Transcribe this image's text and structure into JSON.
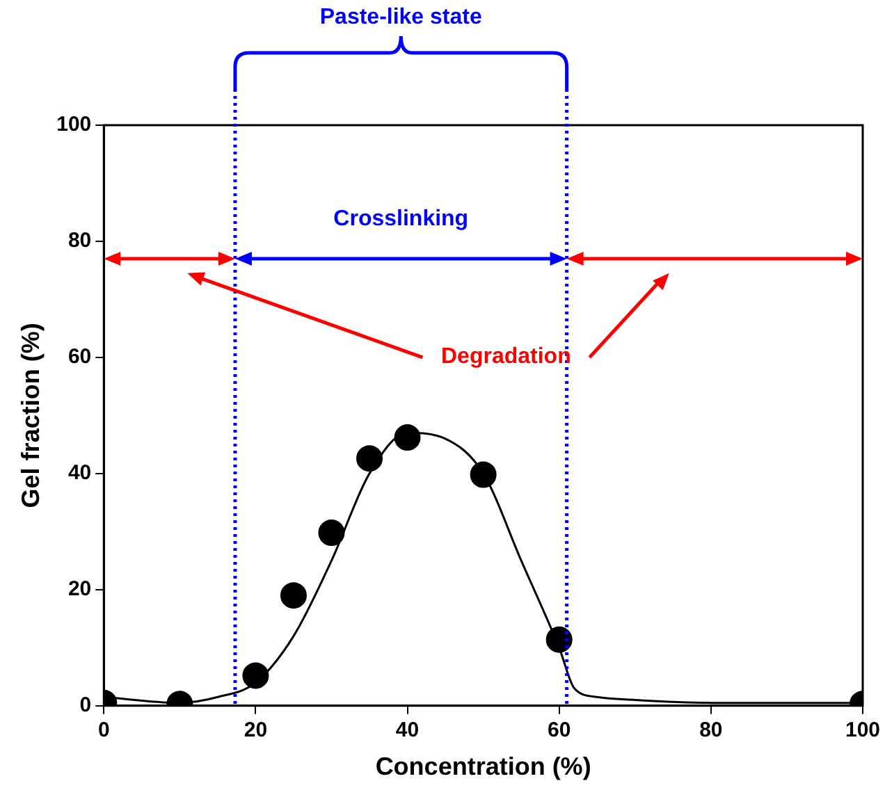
{
  "chart_data": {
    "type": "scatter",
    "xlabel": "Concentration (%)",
    "ylabel": "Gel fraction (%)",
    "xlim": [
      0,
      100
    ],
    "xticks": [
      0,
      20,
      40,
      60,
      80,
      100
    ],
    "ylim": [
      0,
      100
    ],
    "yticks": [
      0,
      20,
      40,
      60,
      80,
      100
    ],
    "grid": false,
    "legend": false,
    "marker": "circle",
    "series": [
      {
        "color": "#000000",
        "x": [
          0,
          10,
          20,
          25,
          30,
          35,
          40,
          50,
          60,
          100
        ],
        "values": [
          0.5,
          0.3,
          5.2,
          19,
          29.8,
          42.6,
          46.2,
          39.8,
          11.4,
          0.3
        ]
      },
      {
        "type": "line",
        "color": "#000000",
        "marker": "none",
        "line_style": "solid",
        "x": [
          0,
          10,
          15,
          20,
          25,
          30,
          35,
          40,
          45,
          50,
          55,
          60,
          62,
          65,
          70,
          80,
          100
        ],
        "values": [
          1.5,
          0.5,
          1.5,
          4,
          12,
          25,
          40,
          47,
          46,
          40,
          25,
          10,
          3,
          1.5,
          1,
          0.5,
          0.5
        ]
      }
    ],
    "ref_lines": [
      {
        "axis": "x",
        "value": 17.3,
        "color": "#0000ff",
        "line_style": "dotted"
      },
      {
        "axis": "x",
        "value": 61,
        "color": "#0000ff",
        "line_style": "dotted"
      }
    ],
    "annotations": [
      "Paste-like state",
      "Crosslinking",
      "Degradation"
    ]
  }
}
